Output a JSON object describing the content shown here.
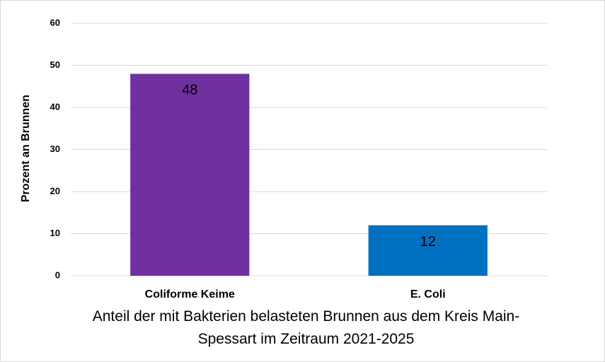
{
  "chart_data": {
    "type": "bar",
    "title": "Anteil der mit Bakterien belasteten Brunnen aus dem Kreis Main-Spessart im Zeitraum 2021-2025",
    "y_label": "Prozent an Brunnen",
    "categories": [
      "Coliforme Keime",
      "E. Coli"
    ],
    "values": [
      48,
      12
    ],
    "colors": [
      "#7030a0",
      "#0070c0"
    ],
    "ylim": [
      0,
      60
    ],
    "yticks": [
      0,
      10,
      20,
      30,
      40,
      50,
      60
    ],
    "grid": true
  }
}
